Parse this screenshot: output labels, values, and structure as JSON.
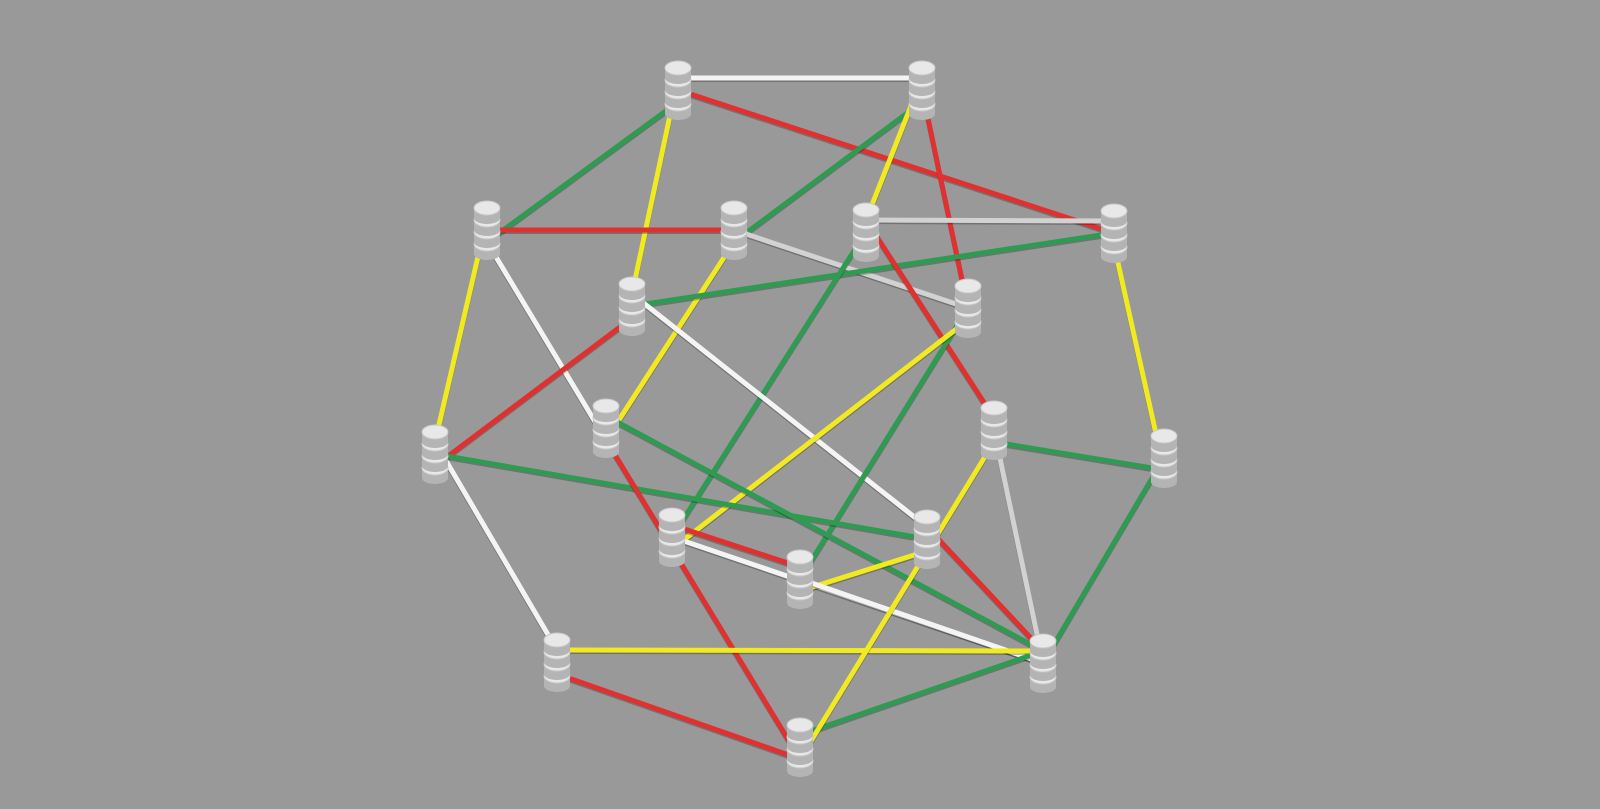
{
  "scene": {
    "background": "#999999",
    "peg_color": "#e8e8e8",
    "peg_shadow": "#b4b4b4",
    "rod_colors": {
      "red": "#e03030",
      "green": "#2e9a52",
      "yellow": "#f2ea20",
      "white": "#f4f4f4",
      "grey": "#d2d2d2"
    },
    "edges": [
      {
        "from": "A",
        "to": "B",
        "color": "white"
      },
      {
        "from": "A",
        "to": "F",
        "color": "red"
      },
      {
        "from": "A",
        "to": "C",
        "color": "green"
      },
      {
        "from": "A",
        "to": "G",
        "color": "yellow"
      },
      {
        "from": "B",
        "to": "H",
        "color": "red"
      },
      {
        "from": "B",
        "to": "D",
        "color": "green"
      },
      {
        "from": "B",
        "to": "E",
        "color": "yellow"
      },
      {
        "from": "C",
        "to": "D",
        "color": "red"
      },
      {
        "from": "C",
        "to": "J",
        "color": "white"
      },
      {
        "from": "C",
        "to": "I",
        "color": "yellow"
      },
      {
        "from": "D",
        "to": "H",
        "color": "grey"
      },
      {
        "from": "D",
        "to": "J",
        "color": "yellow"
      },
      {
        "from": "F",
        "to": "E",
        "color": "grey"
      },
      {
        "from": "F",
        "to": "G",
        "color": "green"
      },
      {
        "from": "F",
        "to": "L",
        "color": "yellow"
      },
      {
        "from": "E",
        "to": "K",
        "color": "red"
      },
      {
        "from": "E",
        "to": "M",
        "color": "green"
      },
      {
        "from": "G",
        "to": "I",
        "color": "red"
      },
      {
        "from": "G",
        "to": "N",
        "color": "white"
      },
      {
        "from": "H",
        "to": "O",
        "color": "green"
      },
      {
        "from": "H",
        "to": "M",
        "color": "yellow"
      },
      {
        "from": "I",
        "to": "P",
        "color": "white"
      },
      {
        "from": "I",
        "to": "N",
        "color": "green"
      },
      {
        "from": "J",
        "to": "R",
        "color": "red"
      },
      {
        "from": "J",
        "to": "Q",
        "color": "green"
      },
      {
        "from": "K",
        "to": "Q",
        "color": "grey"
      },
      {
        "from": "K",
        "to": "L",
        "color": "green"
      },
      {
        "from": "M",
        "to": "O",
        "color": "red"
      },
      {
        "from": "M",
        "to": "T",
        "color": "white"
      },
      {
        "from": "N",
        "to": "O",
        "color": "yellow"
      },
      {
        "from": "N",
        "to": "S",
        "color": "red"
      },
      {
        "from": "O",
        "to": "S",
        "color": "white"
      },
      {
        "from": "Q",
        "to": "T",
        "color": "red"
      },
      {
        "from": "Q",
        "to": "P",
        "color": "yellow"
      },
      {
        "from": "L",
        "to": "T",
        "color": "green"
      },
      {
        "from": "P",
        "to": "R",
        "color": "red"
      },
      {
        "from": "R",
        "to": "S",
        "color": "green"
      },
      {
        "from": "S",
        "to": "T",
        "color": "yellow"
      },
      {
        "from": "K",
        "to": "R",
        "color": "yellow"
      }
    ]
  }
}
